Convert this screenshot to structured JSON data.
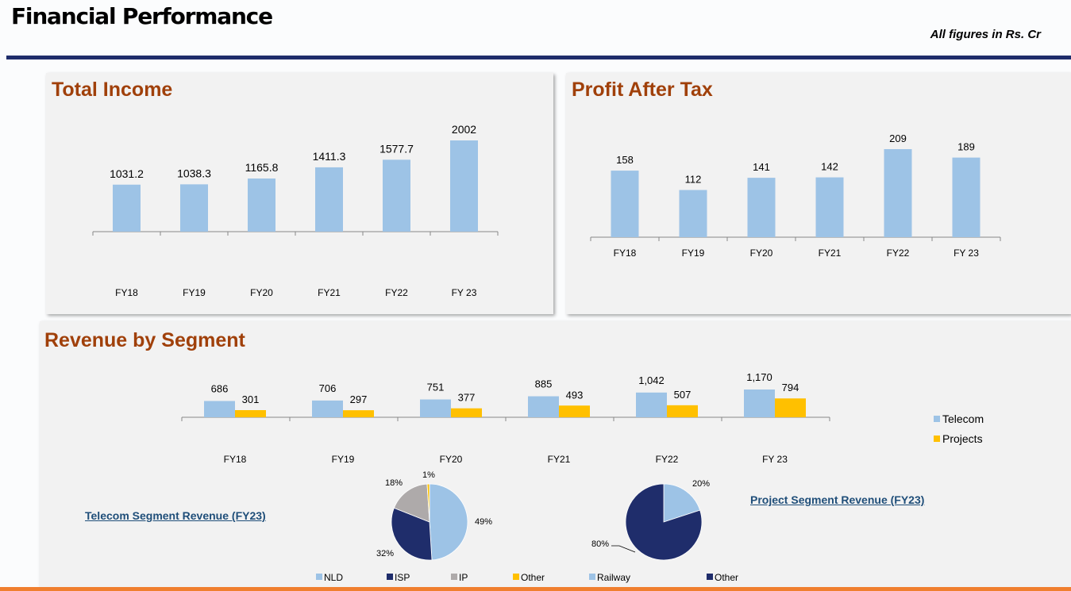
{
  "header": {
    "title": "Financial Performance",
    "note": "All figures in Rs. Cr"
  },
  "colors": {
    "light_blue": "#9dc3e6",
    "navy": "#1f2d6b",
    "gold": "#ffc000",
    "grey": "#aeaaaa",
    "title_brown": "#a0400a",
    "orange": "#f07f2f"
  },
  "chart_data": [
    {
      "type": "bar",
      "title": "Total Income",
      "categories": [
        "FY18",
        "FY19",
        "FY20",
        "FY21",
        "FY22",
        "FY 23"
      ],
      "values": [
        1031.2,
        1038.3,
        1165.8,
        1411.3,
        1577.7,
        2002
      ],
      "value_labels": [
        "1031.2",
        "1038.3",
        "1165.8",
        "1411.3",
        "1577.7",
        "2002"
      ],
      "xlabel": "",
      "ylabel": "",
      "grid": false
    },
    {
      "type": "bar",
      "title": "Profit After Tax",
      "categories": [
        "FY18",
        "FY19",
        "FY20",
        "FY21",
        "FY22",
        "FY 23"
      ],
      "values": [
        158,
        112,
        141,
        142,
        209,
        189
      ],
      "value_labels": [
        "158",
        "112",
        "141",
        "142",
        "209",
        "189"
      ],
      "xlabel": "",
      "ylabel": "",
      "grid": false
    },
    {
      "type": "bar",
      "title": "Revenue by Segment",
      "categories": [
        "FY18",
        "FY19",
        "FY20",
        "FY21",
        "FY22",
        "FY 23"
      ],
      "series": [
        {
          "name": "Telecom",
          "values": [
            686,
            706,
            751,
            885,
            1042,
            1170
          ],
          "value_labels": [
            "686",
            "706",
            "751",
            "885",
            "1,042",
            "1,170"
          ]
        },
        {
          "name": "Projects",
          "values": [
            301,
            297,
            377,
            493,
            507,
            794
          ],
          "value_labels": [
            "301",
            "297",
            "377",
            "493",
            "507",
            "794"
          ]
        }
      ],
      "legend": "right",
      "grid": false
    },
    {
      "type": "pie",
      "title": "Telecom Segment Revenue (FY23)",
      "labels": [
        "NLD",
        "ISP",
        "IP",
        "Other"
      ],
      "values": [
        49,
        32,
        18,
        1
      ],
      "value_labels": [
        "49%",
        "32%",
        "18%",
        "1%"
      ],
      "legend": "bottom"
    },
    {
      "type": "pie",
      "title": "Project Segment Revenue (FY23)",
      "labels": [
        "Railway",
        "Other"
      ],
      "values": [
        20,
        80
      ],
      "value_labels": [
        "20%",
        "80%"
      ],
      "legend": "bottom"
    }
  ]
}
